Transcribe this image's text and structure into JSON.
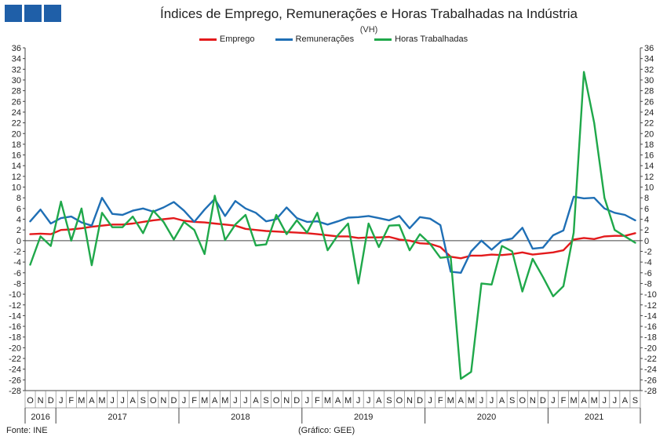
{
  "header": {
    "title": "Índices de Emprego, Remunerações e Horas Trabalhadas na Indústria",
    "unit": "(VH)"
  },
  "footer": {
    "source": "Fonte: INE",
    "credit": "(Gráfico: GEE)"
  },
  "colors": {
    "emprego": "#e31a1c",
    "remuneracoes": "#1f6fb5",
    "horas": "#1fa84a",
    "logo": "#1f5fa8"
  },
  "chart_data": {
    "type": "line",
    "ylim": [
      -28,
      36
    ],
    "y_ticks": [
      36,
      34,
      32,
      30,
      28,
      26,
      24,
      22,
      20,
      18,
      16,
      14,
      12,
      10,
      8,
      6,
      4,
      2,
      0,
      -2,
      -4,
      -6,
      -8,
      -10,
      -12,
      -14,
      -16,
      -18,
      -20,
      -22,
      -24,
      -26,
      -28
    ],
    "x": [
      "O",
      "N",
      "D",
      "J",
      "F",
      "M",
      "A",
      "M",
      "J",
      "J",
      "A",
      "S",
      "O",
      "N",
      "D",
      "J",
      "F",
      "M",
      "A",
      "M",
      "J",
      "J",
      "A",
      "S",
      "O",
      "N",
      "D",
      "J",
      "F",
      "M",
      "A",
      "M",
      "J",
      "J",
      "A",
      "S",
      "O",
      "N",
      "D",
      "J",
      "F",
      "M",
      "A",
      "M",
      "J",
      "J",
      "A",
      "S",
      "O",
      "N",
      "D",
      "J",
      "F",
      "M",
      "A",
      "M",
      "J",
      "J",
      "A",
      "S"
    ],
    "years": [
      {
        "label": "2016",
        "start": 0,
        "end": 2
      },
      {
        "label": "2017",
        "start": 3,
        "end": 14
      },
      {
        "label": "2018",
        "start": 15,
        "end": 26
      },
      {
        "label": "2019",
        "start": 27,
        "end": 38
      },
      {
        "label": "2020",
        "start": 39,
        "end": 50
      },
      {
        "label": "2021",
        "start": 51,
        "end": 59
      }
    ],
    "series": [
      {
        "name": "Emprego",
        "color": "#e31a1c",
        "values": [
          1.2,
          1.3,
          1.2,
          2.0,
          2.1,
          2.3,
          2.6,
          2.8,
          3.0,
          3.0,
          3.2,
          3.5,
          3.8,
          4.0,
          4.2,
          3.7,
          3.5,
          3.4,
          3.2,
          3.0,
          2.8,
          2.2,
          2.0,
          1.8,
          1.7,
          1.6,
          1.5,
          1.4,
          1.2,
          1.0,
          0.8,
          0.8,
          0.5,
          0.6,
          0.6,
          0.7,
          0.2,
          0.0,
          -0.5,
          -0.6,
          -1.2,
          -3.0,
          -3.3,
          -2.8,
          -2.8,
          -2.6,
          -2.7,
          -2.5,
          -2.2,
          -2.6,
          -2.4,
          -2.2,
          -1.8,
          0.2,
          0.5,
          0.3,
          0.8,
          0.9,
          0.9,
          1.4
        ]
      },
      {
        "name": "Remunerações",
        "color": "#1f6fb5",
        "values": [
          3.6,
          5.8,
          3.2,
          4.2,
          4.5,
          3.4,
          2.8,
          8.0,
          5.0,
          4.8,
          5.6,
          6.0,
          5.4,
          6.2,
          7.2,
          5.6,
          3.5,
          5.8,
          7.8,
          4.6,
          7.4,
          6.0,
          5.2,
          3.6,
          4.0,
          6.2,
          4.2,
          3.5,
          3.6,
          3.0,
          3.6,
          4.3,
          4.4,
          4.6,
          4.2,
          3.8,
          4.6,
          2.3,
          4.4,
          4.1,
          2.9,
          -5.8,
          -6.0,
          -2.0,
          0.0,
          -1.7,
          0.0,
          0.4,
          2.4,
          -1.5,
          -1.3,
          1.0,
          1.9,
          8.2,
          7.9,
          8.0,
          6.0,
          5.2,
          4.8,
          3.8
        ]
      },
      {
        "name": "Horas Trabalhadas",
        "color": "#1fa84a",
        "values": [
          -4.5,
          0.8,
          -1.0,
          7.3,
          0.0,
          6.0,
          -4.6,
          5.2,
          2.5,
          2.5,
          4.5,
          1.4,
          5.6,
          3.5,
          0.2,
          3.5,
          2.0,
          -2.5,
          8.4,
          0.1,
          3.0,
          4.8,
          -0.9,
          -0.7,
          4.8,
          1.2,
          3.8,
          1.5,
          5.2,
          -1.8,
          1.0,
          3.2,
          -8.0,
          3.2,
          -1.2,
          2.8,
          2.9,
          -1.8,
          1.2,
          -0.6,
          -3.2,
          -3.0,
          -25.8,
          -24.5,
          -8.0,
          -8.2,
          -1.0,
          -2.0,
          -9.5,
          -3.4,
          -6.8,
          -10.4,
          -8.5,
          1.5,
          31.5,
          22.0,
          8.0,
          2.0,
          0.8,
          -0.4
        ]
      }
    ]
  }
}
